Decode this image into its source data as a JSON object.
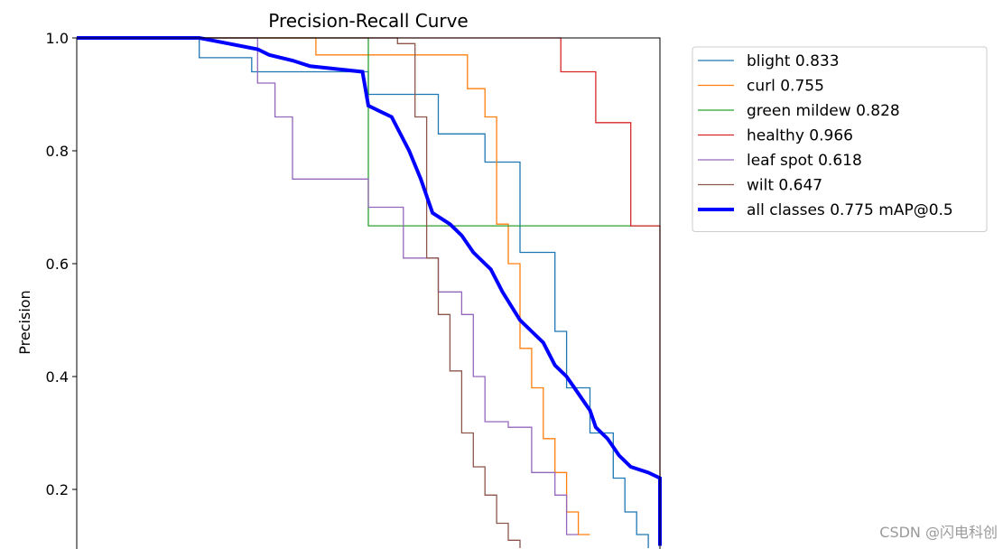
{
  "chart_data": {
    "type": "line",
    "title": "Precision-Recall Curve",
    "ylabel": "Precision",
    "xlabel": "",
    "xlim": [
      0,
      1
    ],
    "ylim": [
      0.1,
      1.0
    ],
    "yticks": [
      "0.2",
      "0.4",
      "0.6",
      "0.8",
      "1.0"
    ],
    "ytick_values": [
      0.2,
      0.4,
      0.6,
      0.8,
      1.0
    ],
    "legend_position": "upper-right-outside",
    "series": [
      {
        "name": "blight 0.833",
        "color": "#1f77b4",
        "width": 1.3,
        "x": [
          0,
          0.21,
          0.21,
          0.3,
          0.3,
          0.5,
          0.5,
          0.62,
          0.62,
          0.7,
          0.7,
          0.76,
          0.76,
          0.82,
          0.82,
          0.84,
          0.84,
          0.88,
          0.88,
          0.92,
          0.92,
          0.94,
          0.94,
          0.96,
          0.96,
          0.98,
          0.98,
          1.0
        ],
        "y": [
          1.0,
          1.0,
          0.965,
          0.965,
          0.94,
          0.94,
          0.9,
          0.9,
          0.83,
          0.83,
          0.78,
          0.78,
          0.62,
          0.62,
          0.48,
          0.48,
          0.38,
          0.38,
          0.3,
          0.3,
          0.22,
          0.22,
          0.16,
          0.16,
          0.12,
          0.12,
          0.08,
          0.08
        ]
      },
      {
        "name": "curl 0.755",
        "color": "#ff7f0e",
        "width": 1.3,
        "x": [
          0,
          0.41,
          0.41,
          0.67,
          0.67,
          0.7,
          0.7,
          0.72,
          0.72,
          0.74,
          0.74,
          0.76,
          0.76,
          0.78,
          0.78,
          0.8,
          0.8,
          0.82,
          0.82,
          0.84,
          0.84,
          0.86,
          0.86,
          0.88
        ],
        "y": [
          1.0,
          1.0,
          0.97,
          0.97,
          0.91,
          0.91,
          0.86,
          0.86,
          0.67,
          0.67,
          0.6,
          0.6,
          0.45,
          0.45,
          0.38,
          0.38,
          0.29,
          0.29,
          0.23,
          0.23,
          0.16,
          0.16,
          0.12,
          0.12
        ]
      },
      {
        "name": "green mildew 0.828",
        "color": "#2ca02c",
        "width": 1.3,
        "x": [
          0,
          0.5,
          0.5,
          1.0
        ],
        "y": [
          1.0,
          1.0,
          0.667,
          0.667
        ]
      },
      {
        "name": "healthy 0.966",
        "color": "#d62728",
        "width": 1.3,
        "x": [
          0,
          0.83,
          0.83,
          0.89,
          0.89,
          0.95,
          0.95,
          1.0,
          1.0
        ],
        "y": [
          1.0,
          1.0,
          0.94,
          0.94,
          0.85,
          0.85,
          0.667,
          0.667,
          0.1
        ]
      },
      {
        "name": "leaf spot 0.618",
        "color": "#9467bd",
        "width": 1.3,
        "x": [
          0,
          0.31,
          0.31,
          0.34,
          0.34,
          0.37,
          0.37,
          0.42,
          0.42,
          0.5,
          0.5,
          0.56,
          0.56,
          0.62,
          0.62,
          0.66,
          0.66,
          0.68,
          0.68,
          0.7,
          0.7,
          0.72,
          0.72,
          0.74,
          0.74,
          0.78,
          0.78,
          0.82,
          0.82,
          0.84,
          0.84,
          0.86
        ],
        "y": [
          1.0,
          1.0,
          0.92,
          0.92,
          0.86,
          0.86,
          0.75,
          0.75,
          0.75,
          0.75,
          0.7,
          0.7,
          0.61,
          0.61,
          0.55,
          0.55,
          0.51,
          0.51,
          0.4,
          0.4,
          0.32,
          0.32,
          0.32,
          0.32,
          0.31,
          0.31,
          0.23,
          0.23,
          0.19,
          0.19,
          0.12,
          0.12
        ]
      },
      {
        "name": "wilt 0.647",
        "color": "#8c564b",
        "width": 1.3,
        "x": [
          0,
          0.55,
          0.55,
          0.58,
          0.58,
          0.6,
          0.6,
          0.62,
          0.62,
          0.64,
          0.64,
          0.66,
          0.66,
          0.68,
          0.68,
          0.7,
          0.7,
          0.72,
          0.72,
          0.74,
          0.74,
          0.76,
          0.76,
          0.78
        ],
        "y": [
          1.0,
          1.0,
          0.99,
          0.99,
          0.86,
          0.86,
          0.61,
          0.61,
          0.51,
          0.51,
          0.41,
          0.41,
          0.3,
          0.3,
          0.24,
          0.24,
          0.19,
          0.19,
          0.14,
          0.14,
          0.11,
          0.11,
          0.09,
          0.09
        ]
      },
      {
        "name": "all classes 0.775 mAP@0.5",
        "color": "#0000ff",
        "width": 4,
        "x": [
          0,
          0.21,
          0.31,
          0.33,
          0.37,
          0.4,
          0.49,
          0.5,
          0.52,
          0.54,
          0.57,
          0.59,
          0.61,
          0.64,
          0.66,
          0.68,
          0.71,
          0.73,
          0.76,
          0.78,
          0.8,
          0.82,
          0.84,
          0.86,
          0.88,
          0.89,
          0.91,
          0.93,
          0.95,
          0.98,
          1.0,
          1.0
        ],
        "y": [
          1.0,
          1.0,
          0.98,
          0.97,
          0.96,
          0.95,
          0.94,
          0.88,
          0.87,
          0.86,
          0.8,
          0.75,
          0.69,
          0.67,
          0.65,
          0.62,
          0.59,
          0.55,
          0.5,
          0.48,
          0.46,
          0.42,
          0.4,
          0.37,
          0.34,
          0.31,
          0.29,
          0.26,
          0.24,
          0.23,
          0.22,
          0.1
        ]
      }
    ]
  },
  "watermark": "CSDN @闪电科创"
}
